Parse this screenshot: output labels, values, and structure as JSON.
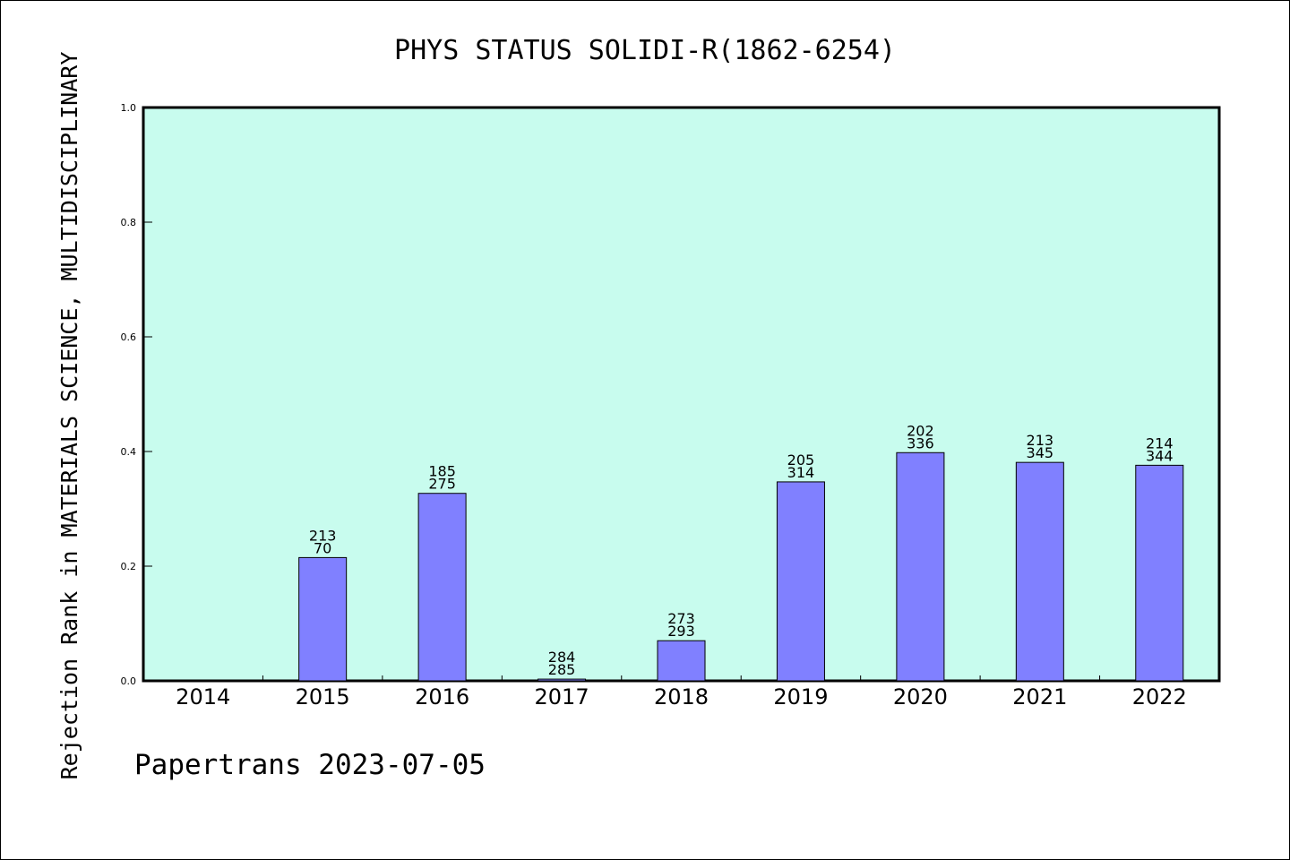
{
  "chart_data": {
    "type": "bar",
    "title": "PHYS STATUS SOLIDI-R(1862-6254)",
    "ylabel": "Rejection Rank in MATERIALS SCIENCE, MULTIDISCIPLINARY",
    "xlabel": "",
    "ylim": [
      0,
      1.0
    ],
    "yticks": [
      "0.0",
      "0.2",
      "0.4",
      "0.6",
      "0.8",
      "1.0"
    ],
    "categories": [
      "2014",
      "2015",
      "2016",
      "2017",
      "2018",
      "2019",
      "2020",
      "2021",
      "2022"
    ],
    "values": [
      null,
      0.215,
      0.327,
      0.003,
      0.07,
      0.347,
      0.398,
      0.381,
      0.376
    ],
    "labels_top": [
      "",
      "213",
      "185",
      "284",
      "273",
      "205",
      "202",
      "213",
      "214"
    ],
    "labels_bottom": [
      "",
      "70",
      "275",
      "285",
      "293",
      "314",
      "336",
      "345",
      "344"
    ],
    "grid": false,
    "colors": {
      "plot_background": "#c8fcee",
      "bar_fill": "#8080ff",
      "bar_stroke": "#000000"
    }
  },
  "footer": "Papertrans 2023-07-05"
}
